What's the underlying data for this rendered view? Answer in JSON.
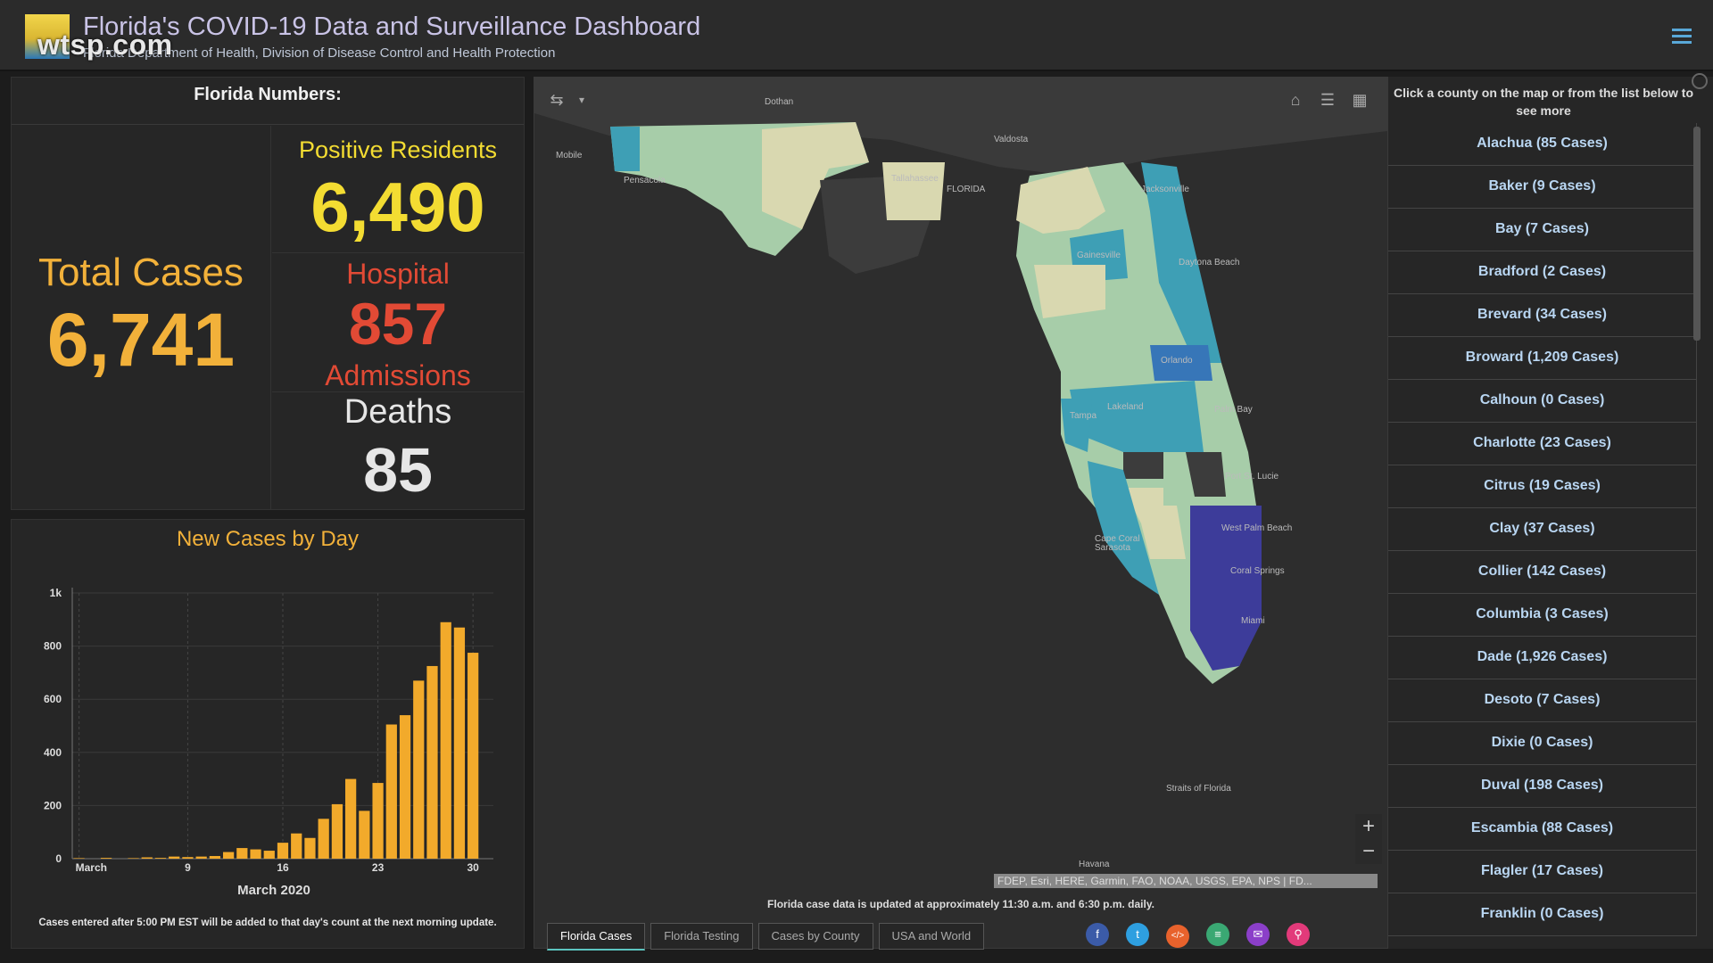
{
  "header": {
    "title": "Florida's COVID-19 Data and Surveillance Dashboard",
    "subtitle": "Florida Department of Health, Division of Disease Control and Health Protection",
    "watermark": "wtsp.com",
    "menu_icon": "hamburger-menu-icon"
  },
  "numbers": {
    "title": "Florida Numbers:",
    "total_label": "Total Cases",
    "total_value": "6,741",
    "positive_label": "Positive Residents",
    "positive_value": "6,490",
    "hospital_label": "Hospital",
    "hospital_value": "857",
    "hospital_label2": "Admissions",
    "deaths_label": "Deaths",
    "deaths_value": "85",
    "colors": {
      "total": "#f2b13a",
      "positive": "#f3dc32",
      "hospital": "#e24a35",
      "deaths": "#e6e6e6"
    }
  },
  "chart_data": {
    "type": "bar",
    "title": "New Cases by Day",
    "xlabel": "March 2020",
    "ylabel": "",
    "ylim": [
      0,
      1000
    ],
    "yticks": [
      "0",
      "200",
      "400",
      "600",
      "800",
      "1k"
    ],
    "xticks": [
      {
        "day": 1,
        "label": "March"
      },
      {
        "day": 9,
        "label": "9"
      },
      {
        "day": 16,
        "label": "16"
      },
      {
        "day": 23,
        "label": "23"
      },
      {
        "day": 30,
        "label": "30"
      }
    ],
    "bar_color": "#f2aa2b",
    "days": [
      1,
      2,
      3,
      4,
      5,
      6,
      7,
      8,
      9,
      10,
      11,
      12,
      13,
      14,
      15,
      16,
      17,
      18,
      19,
      20,
      21,
      22,
      23,
      24,
      25,
      26,
      27,
      28,
      29,
      30,
      31
    ],
    "values": [
      2,
      0,
      3,
      0,
      2,
      5,
      3,
      8,
      6,
      8,
      10,
      25,
      40,
      35,
      30,
      60,
      95,
      78,
      150,
      205,
      300,
      180,
      285,
      505,
      540,
      670,
      725,
      890,
      870,
      775,
      0
    ]
  },
  "chart_note": "Cases entered after 5:00 PM EST will be added to that day's count at the next morning update.",
  "map": {
    "city_labels": [
      "Dothan",
      "Valdosta",
      "Mobile",
      "Pensacola",
      "Tallahassee",
      "FLORIDA",
      "Jacksonville",
      "Gainesville",
      "Daytona Beach",
      "Orlando",
      "Tampa",
      "Lakeland",
      "Palm Bay",
      "Port St. Lucie",
      "West Palm Beach",
      "Sarasota",
      "Cape Coral",
      "Coral Springs",
      "Miami",
      "Straits of Florida",
      "Havana"
    ],
    "attribution": "FDEP, Esri, HERE, Garmin, FAO, NOAA, USGS, EPA, NPS | FD...",
    "update_note": "Florida case data is updated at approximately 11:30 a.m. and 6:30 p.m. daily.",
    "tools": [
      "home-icon",
      "list-icon",
      "grid-icon"
    ],
    "zoom_in": "+",
    "zoom_out": "−",
    "tabs": [
      {
        "label": "Florida Cases",
        "active": true
      },
      {
        "label": "Florida Testing",
        "active": false
      },
      {
        "label": "Cases by County",
        "active": false
      },
      {
        "label": "USA and World",
        "active": false
      }
    ],
    "share": [
      {
        "name": "facebook-icon",
        "glyph": "f",
        "color": "#3b5ba8"
      },
      {
        "name": "twitter-icon",
        "glyph": "t",
        "color": "#2e9fe0"
      },
      {
        "name": "embed-icon",
        "glyph": "</>",
        "color": "#e8622c"
      },
      {
        "name": "document-icon",
        "glyph": "≡",
        "color": "#3aa873"
      },
      {
        "name": "email-icon",
        "glyph": "✉",
        "color": "#8b3fc9"
      },
      {
        "name": "link-icon",
        "glyph": "⚲",
        "color": "#e23a7a"
      }
    ],
    "colors": {
      "background": "#2d2d2d",
      "land": "#3c3c3c",
      "low": "#d9d8b0",
      "mid": "#a7cda9",
      "high": "#3e9fb5",
      "higher": "#3776b8",
      "highest": "#3d3c9a"
    }
  },
  "county_list": {
    "instructions": "Click a county on the map or from the list below to see more",
    "items": [
      "Alachua  (85 Cases)",
      "Baker  (9 Cases)",
      "Bay  (7 Cases)",
      "Bradford  (2 Cases)",
      "Brevard  (34 Cases)",
      "Broward  (1,209 Cases)",
      "Calhoun  (0 Cases)",
      "Charlotte  (23 Cases)",
      "Citrus  (19 Cases)",
      "Clay  (37 Cases)",
      "Collier  (142 Cases)",
      "Columbia  (3 Cases)",
      "Dade  (1,926 Cases)",
      "Desoto  (7 Cases)",
      "Dixie  (0 Cases)",
      "Duval  (198 Cases)",
      "Escambia  (88 Cases)",
      "Flagler  (17 Cases)",
      "Franklin  (0 Cases)"
    ]
  }
}
